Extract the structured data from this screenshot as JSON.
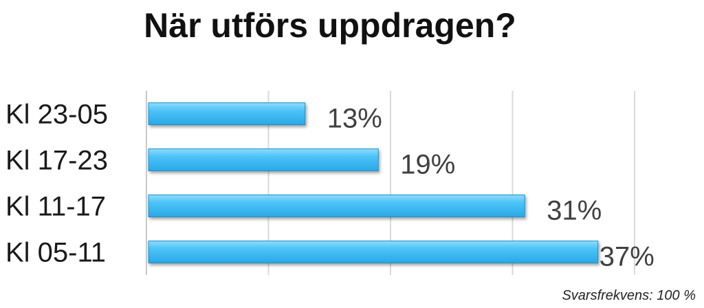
{
  "chart_data": {
    "type": "bar",
    "orientation": "horizontal",
    "title": "När utförs uppdragen?",
    "categories": [
      "Kl 23-05",
      "Kl 17-23",
      "Kl 11-17",
      "Kl 05-11"
    ],
    "values": [
      13,
      19,
      31,
      37
    ],
    "value_labels": [
      "13%",
      "19%",
      "31%",
      "37%"
    ],
    "unit": "%",
    "xlim": [
      0,
      40
    ],
    "grid": true,
    "bar_color": "#44bff6",
    "footnote": "Svarsfrekvens: 100 %"
  }
}
